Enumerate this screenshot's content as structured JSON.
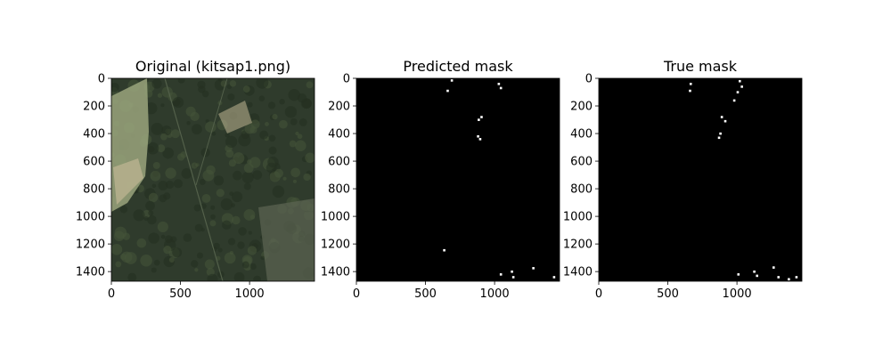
{
  "chart_data": [
    {
      "type": "heatmap",
      "image_kind": "aerial-photo",
      "title": "Original (kitsap1.png)",
      "xlim": [
        0,
        1470
      ],
      "ylim": [
        1470,
        0
      ],
      "xticks": [
        0,
        500,
        1000
      ],
      "yticks": [
        0,
        200,
        400,
        600,
        800,
        1000,
        1200,
        1400
      ],
      "colors": {
        "forest": "#2f3b2c",
        "forest_light": "#445339",
        "field": "#9aa57c",
        "sand": "#c0b694"
      }
    },
    {
      "type": "heatmap",
      "image_kind": "binary-mask",
      "title": "Predicted mask",
      "xlim": [
        0,
        1470
      ],
      "ylim": [
        1470,
        0
      ],
      "xticks": [
        0,
        500,
        1000
      ],
      "yticks": [
        0,
        200,
        400,
        600,
        800,
        1000,
        1200,
        1400
      ],
      "colors": {
        "background": "#000000",
        "positive": "#ffffff"
      },
      "positive_points": [
        [
          690,
          15
        ],
        [
          660,
          90
        ],
        [
          1030,
          40
        ],
        [
          1045,
          70
        ],
        [
          885,
          300
        ],
        [
          905,
          280
        ],
        [
          880,
          420
        ],
        [
          895,
          440
        ],
        [
          635,
          1245
        ],
        [
          1125,
          1400
        ],
        [
          1135,
          1440
        ],
        [
          1045,
          1420
        ],
        [
          1280,
          1375
        ],
        [
          1430,
          1440
        ]
      ]
    },
    {
      "type": "heatmap",
      "image_kind": "binary-mask",
      "title": "True mask",
      "xlim": [
        0,
        1470
      ],
      "ylim": [
        1470,
        0
      ],
      "xticks": [
        0,
        500,
        1000
      ],
      "yticks": [
        0,
        200,
        400,
        600,
        800,
        1000,
        1200,
        1400
      ],
      "colors": {
        "background": "#000000",
        "positive": "#ffffff"
      },
      "positive_points": [
        [
          665,
          40
        ],
        [
          660,
          90
        ],
        [
          1020,
          20
        ],
        [
          1035,
          60
        ],
        [
          1005,
          100
        ],
        [
          980,
          160
        ],
        [
          890,
          280
        ],
        [
          915,
          310
        ],
        [
          880,
          400
        ],
        [
          870,
          430
        ],
        [
          1010,
          1420
        ],
        [
          1125,
          1400
        ],
        [
          1145,
          1430
        ],
        [
          1265,
          1370
        ],
        [
          1300,
          1440
        ],
        [
          1430,
          1440
        ],
        [
          1375,
          1455
        ]
      ]
    }
  ]
}
